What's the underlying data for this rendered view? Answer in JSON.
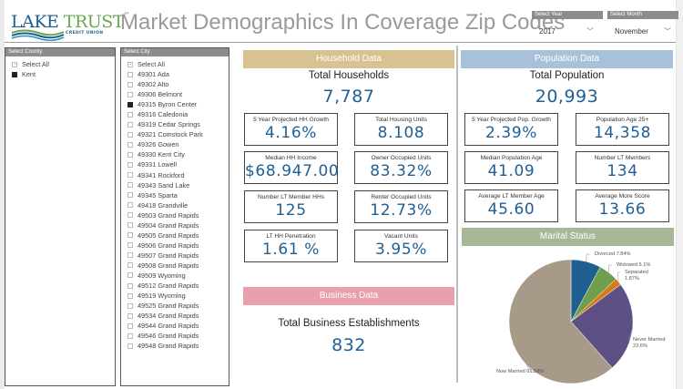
{
  "logo": {
    "word1": "LAKE",
    "word2": "TRUST",
    "subtitle": "CREDIT UNION",
    "tm": "™"
  },
  "header": {
    "title": "Market Demographics In Coverage Zip Codes"
  },
  "filters": {
    "year": {
      "label": "Select Year",
      "value": "2017",
      "icon": "chevron-down-icon"
    },
    "month": {
      "label": "Select Month",
      "value": "November",
      "icon": "chevron-down-icon"
    }
  },
  "county_slicer": {
    "label": "Select County",
    "items": [
      {
        "label": "Select All",
        "state": "partial"
      },
      {
        "label": "Kent",
        "state": "checked"
      }
    ]
  },
  "city_slicer": {
    "label": "Select City",
    "items": [
      {
        "label": "Select All",
        "state": "partial"
      },
      {
        "label": "49301 Ada",
        "state": "unchecked"
      },
      {
        "label": "49302 Alto",
        "state": "unchecked"
      },
      {
        "label": "49306 Belmont",
        "state": "unchecked"
      },
      {
        "label": "49315 Byron Center",
        "state": "checked"
      },
      {
        "label": "49316 Caledonia",
        "state": "unchecked"
      },
      {
        "label": "49319 Cedar Springs",
        "state": "unchecked"
      },
      {
        "label": "49321 Comstock Park",
        "state": "unchecked"
      },
      {
        "label": "49326 Gowen",
        "state": "unchecked"
      },
      {
        "label": "49330 Kent City",
        "state": "unchecked"
      },
      {
        "label": "49331 Lowell",
        "state": "unchecked"
      },
      {
        "label": "49341 Rockford",
        "state": "unchecked"
      },
      {
        "label": "49343 Sand Lake",
        "state": "unchecked"
      },
      {
        "label": "49345 Sparta",
        "state": "unchecked"
      },
      {
        "label": "49418 Grandville",
        "state": "unchecked"
      },
      {
        "label": "49503 Grand Rapids",
        "state": "unchecked"
      },
      {
        "label": "49504 Grand Rapids",
        "state": "unchecked"
      },
      {
        "label": "49505 Grand Rapids",
        "state": "unchecked"
      },
      {
        "label": "49506 Grand Rapids",
        "state": "unchecked"
      },
      {
        "label": "49507 Grand Rapids",
        "state": "unchecked"
      },
      {
        "label": "49508 Grand Rapids",
        "state": "unchecked"
      },
      {
        "label": "49509 Wyoming",
        "state": "unchecked"
      },
      {
        "label": "49512 Grand Rapids",
        "state": "unchecked"
      },
      {
        "label": "49519 Wyoming",
        "state": "unchecked"
      },
      {
        "label": "49525 Grand Rapids",
        "state": "unchecked"
      },
      {
        "label": "49534 Grand Rapids",
        "state": "unchecked"
      },
      {
        "label": "49544 Grand Rapids",
        "state": "unchecked"
      },
      {
        "label": "49546 Grand Rapids",
        "state": "unchecked"
      },
      {
        "label": "49548 Grand Rapids",
        "state": "unchecked"
      }
    ]
  },
  "household": {
    "header": "Household Data",
    "header_color": "#d8c291",
    "total_label": "Total Households",
    "total_value": "7,787",
    "kpis": [
      {
        "label": "5 Year Projected HH Growth",
        "value": "4.16%"
      },
      {
        "label": "Total Housing Units",
        "value": "8.108"
      },
      {
        "label": "Median HH Income",
        "value": "$68.947.00"
      },
      {
        "label": "Owner Occupied Units",
        "value": "83.32%"
      },
      {
        "label": "Number LT Member HHs",
        "value": "125"
      },
      {
        "label": "Renter Occupied Units",
        "value": "12.73%"
      },
      {
        "label": "LT HH Penetration",
        "value": "1.61 %"
      },
      {
        "label": "Vacant Units",
        "value": "3.95%"
      }
    ]
  },
  "business": {
    "header": "Business Data",
    "header_color": "#e8a1ac",
    "total_label": "Total Business Establishments",
    "total_value": "832"
  },
  "population": {
    "header": "Population Data",
    "header_color": "#a7c2d8",
    "total_label": "Total Population",
    "total_value": "20,993",
    "kpis": [
      {
        "label": "5 Year Projected Pop. Growth",
        "value": "2.39%"
      },
      {
        "label": "Population Age 25+",
        "value": "14,358"
      },
      {
        "label": "Median Population Age",
        "value": "41.09"
      },
      {
        "label": "Number LT Members",
        "value": "134"
      },
      {
        "label": "Average LT Member Age",
        "value": "45.60"
      },
      {
        "label": "Average More Score",
        "value": "13.66"
      }
    ]
  },
  "marital": {
    "header": "Marital Status",
    "header_color": "#a8b797"
  },
  "chart_data": {
    "type": "pie",
    "title": "Marital Status",
    "categories": [
      "Divorced",
      "Widowed",
      "Separated",
      "Never Married",
      "Now Married"
    ],
    "values": [
      7.84,
      5.1,
      1.87,
      23.6,
      61.58
    ],
    "labels": [
      "Divorced 7.84%",
      "Widowed 5.1%",
      "Separated 1.87%",
      "Never Married 23.6%",
      "Now Married 61.58%"
    ],
    "colors": [
      "#1f5f8f",
      "#6f9e4c",
      "#d67a1c",
      "#5e4f85",
      "#a89a88"
    ],
    "start_angle_deg": 0,
    "direction": "clockwise"
  }
}
